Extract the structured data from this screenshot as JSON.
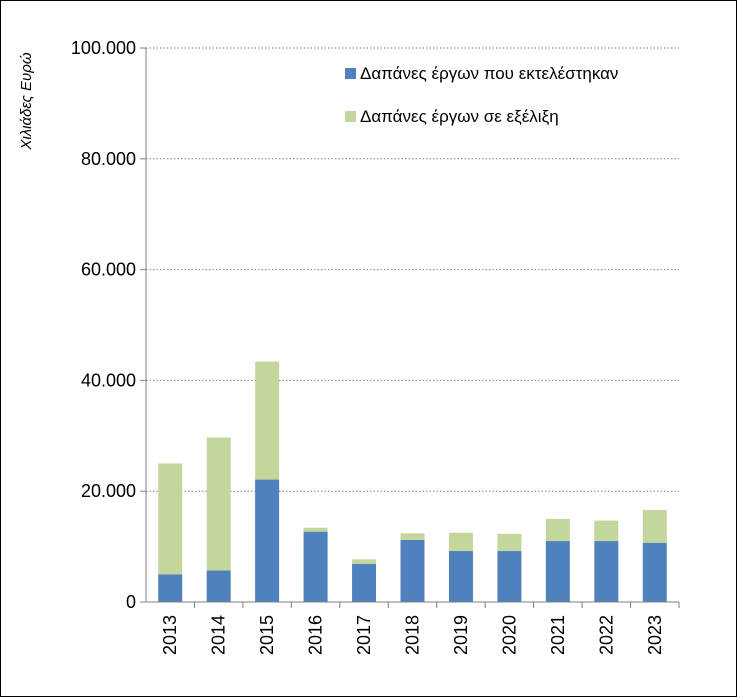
{
  "chart_data": {
    "type": "bar",
    "stacked": true,
    "title": "",
    "xlabel": "",
    "ylabel": "Χιλιάδες Ευρώ",
    "categories": [
      "2013",
      "2014",
      "2015",
      "2016",
      "2017",
      "2018",
      "2019",
      "2020",
      "2021",
      "2022",
      "2023"
    ],
    "series": [
      {
        "name": "Δαπάνες έργων που εκτελέστηκαν",
        "color": "#4f81bd",
        "values": [
          5000,
          5700,
          22100,
          12700,
          6900,
          11200,
          9200,
          9200,
          11000,
          11000,
          10700
        ]
      },
      {
        "name": "Δαπάνες έργων σε εξέλιξη",
        "color": "#c3d69b",
        "values": [
          20000,
          24000,
          21300,
          700,
          800,
          1200,
          3300,
          3100,
          4000,
          3700,
          5900
        ]
      }
    ],
    "ylim": [
      0,
      100000
    ],
    "yticks": [
      0,
      20000,
      40000,
      60000,
      80000,
      100000
    ],
    "ytick_labels": [
      "0",
      "20.000",
      "40.000",
      "60.000",
      "80.000",
      "100.000"
    ],
    "grid": true,
    "legend": "top-right"
  }
}
